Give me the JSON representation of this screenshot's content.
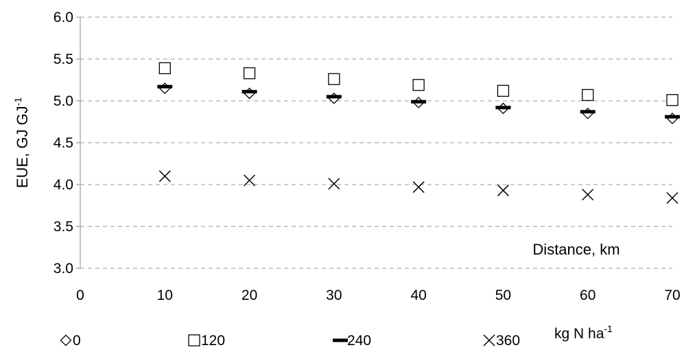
{
  "chart_data": {
    "type": "scatter",
    "title": "",
    "ylabel": "EUE, GJ GJ",
    "ylabel_superscript": "-1",
    "xlabel": "Distance, km",
    "x_ticks": [
      "0",
      "10",
      "20",
      "30",
      "40",
      "50",
      "60",
      "70"
    ],
    "y_ticks": [
      "3.0",
      "3.5",
      "4.0",
      "4.5",
      "5.0",
      "5.5",
      "6.0"
    ],
    "xlim": [
      0,
      70
    ],
    "ylim": [
      3.0,
      6.0
    ],
    "grid": "horizontal dashed",
    "legend_title": "kg N ha",
    "legend_title_superscript": "-1",
    "legend_position": "bottom",
    "x": [
      10,
      20,
      30,
      40,
      50,
      60,
      70
    ],
    "series": [
      {
        "name": "0",
        "marker": "diamond",
        "values": [
          5.15,
          5.09,
          5.03,
          4.98,
          4.91,
          4.85,
          4.79
        ]
      },
      {
        "name": "120",
        "marker": "square",
        "values": [
          5.39,
          5.33,
          5.26,
          5.19,
          5.12,
          5.07,
          5.01
        ]
      },
      {
        "name": "240",
        "marker": "dash",
        "values": [
          5.17,
          5.11,
          5.05,
          4.99,
          4.92,
          4.87,
          4.81
        ]
      },
      {
        "name": "360",
        "marker": "x",
        "values": [
          4.1,
          4.05,
          4.01,
          3.97,
          3.93,
          3.88,
          3.84
        ]
      }
    ]
  }
}
